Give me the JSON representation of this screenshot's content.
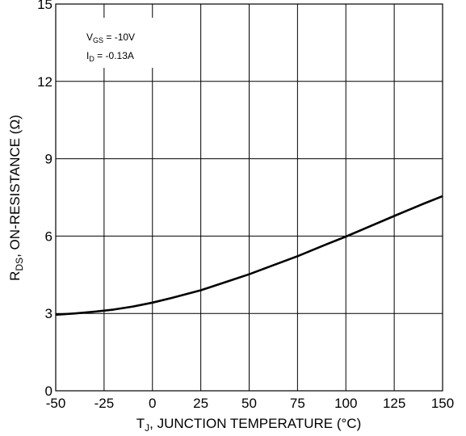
{
  "chart_data": {
    "type": "line",
    "title": "",
    "xlabel": {
      "main": "T",
      "sub": "J",
      "rest": ", JUNCTION TEMPERATURE (°C)"
    },
    "ylabel": {
      "main": "R",
      "sub": "DS",
      "rest": ", ON-RESISTANCE (Ω)"
    },
    "xlim": [
      -50,
      150
    ],
    "ylim": [
      0,
      15
    ],
    "x_ticks": [
      -50,
      -25,
      0,
      25,
      50,
      75,
      100,
      125,
      150
    ],
    "y_ticks": [
      0,
      3,
      6,
      9,
      12,
      15
    ],
    "grid": true,
    "annotations": [
      {
        "main": "V",
        "sub": "GS",
        "rest": " = -10V"
      },
      {
        "main": "I",
        "sub": "D",
        "rest": " = -0.13A"
      }
    ],
    "series": [
      {
        "x": [
          -50,
          -40,
          -30,
          -20,
          -10,
          0,
          10,
          25,
          40,
          50,
          60,
          75,
          90,
          100,
          110,
          125,
          140,
          150
        ],
        "y": [
          2.95,
          3.0,
          3.07,
          3.15,
          3.27,
          3.42,
          3.6,
          3.9,
          4.27,
          4.52,
          4.8,
          5.22,
          5.68,
          5.98,
          6.3,
          6.78,
          7.25,
          7.55
        ]
      }
    ]
  }
}
